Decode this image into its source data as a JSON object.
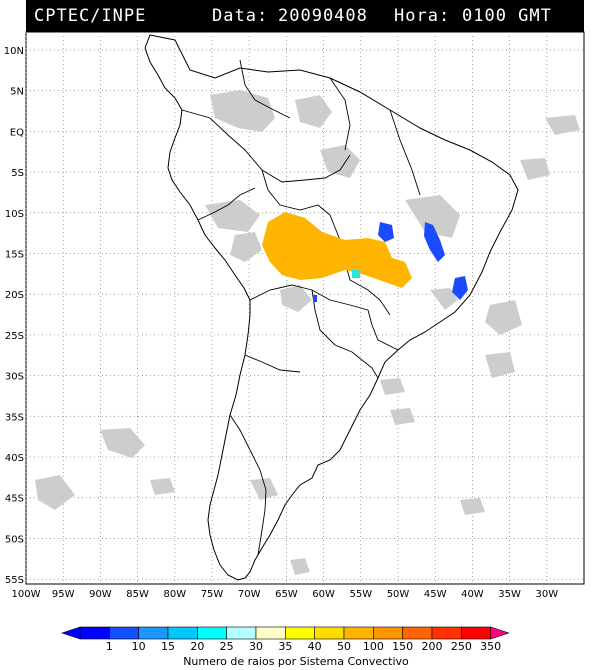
{
  "header": {
    "agency": "CPTEC/INPE",
    "date_label": "Data:",
    "date_value": "20090408",
    "hour_label": "Hora:",
    "hour_value": "0100 GMT"
  },
  "map": {
    "lat_labels": [
      "10N",
      "5N",
      "EQ",
      "5S",
      "10S",
      "15S",
      "20S",
      "25S",
      "30S",
      "35S",
      "40S",
      "45S",
      "50S",
      "55S"
    ],
    "lon_labels": [
      "100W",
      "95W",
      "90W",
      "85W",
      "80W",
      "75W",
      "70W",
      "65W",
      "60W",
      "55W",
      "50W",
      "45W",
      "40W",
      "35W",
      "30W"
    ],
    "colors": {
      "land_outline": "#000000",
      "cloud_gray": "#c8c8c8",
      "convective_orange": "#ffb400",
      "convective_blue": "#1a4bff",
      "convective_cyan": "#33e0e0"
    }
  },
  "colorbar": {
    "ticks": [
      "1",
      "10",
      "15",
      "20",
      "25",
      "30",
      "35",
      "40",
      "50",
      "100",
      "150",
      "200",
      "250",
      "350"
    ],
    "colors": [
      "#0000ff",
      "#1450ff",
      "#1e96ff",
      "#00c8ff",
      "#00ffff",
      "#b4ffff",
      "#ffffc8",
      "#ffff00",
      "#ffdc00",
      "#ffb400",
      "#ff9600",
      "#ff6400",
      "#ff3200",
      "#ff0000",
      "#ff0080"
    ],
    "title": "Numero de raios por Sistema Convectivo"
  }
}
